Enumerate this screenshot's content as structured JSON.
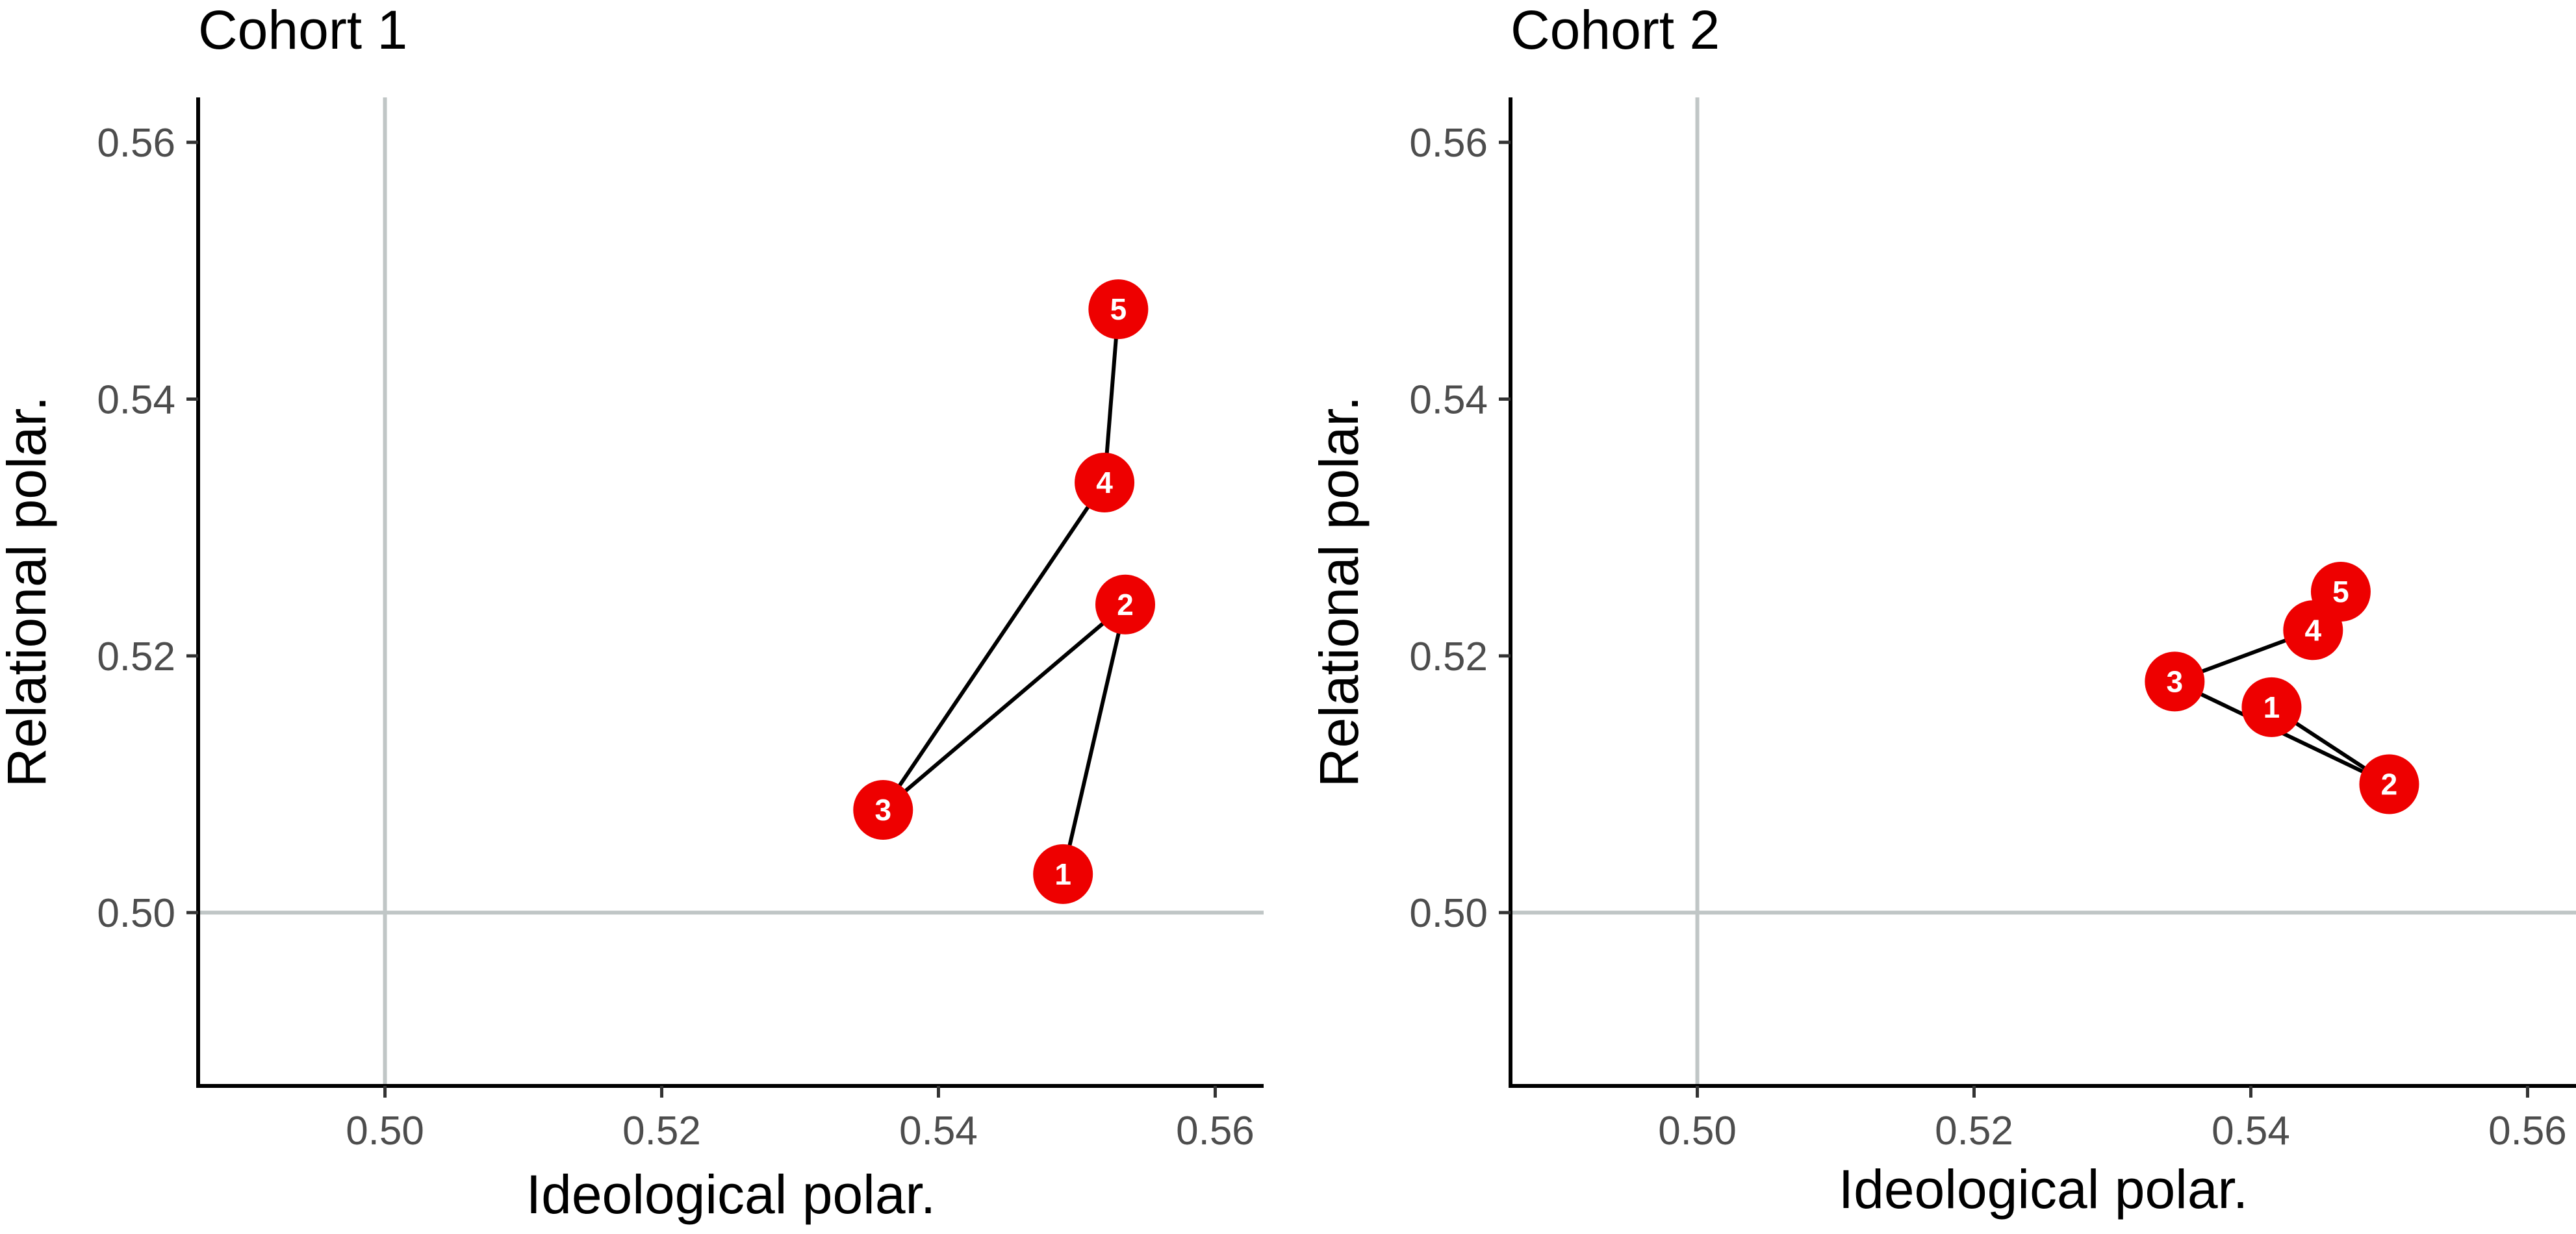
{
  "chart_data": [
    {
      "type": "line",
      "title": "Cohort 1",
      "xlabel": "Ideological polar.",
      "ylabel": "Relational polar.",
      "xlim": [
        0.4865,
        0.5635
      ],
      "ylim": [
        0.4865,
        0.5635
      ],
      "xticks": [
        "0.50",
        "0.52",
        "0.54",
        "0.56"
      ],
      "yticks": [
        "0.50",
        "0.52",
        "0.54",
        "0.56"
      ],
      "reference_lines": {
        "x": 0.5,
        "y": 0.5
      },
      "points": [
        {
          "label": "1",
          "x": 0.549,
          "y": 0.503
        },
        {
          "label": "2",
          "x": 0.5535,
          "y": 0.524
        },
        {
          "label": "3",
          "x": 0.536,
          "y": 0.508
        },
        {
          "label": "4",
          "x": 0.552,
          "y": 0.5335
        },
        {
          "label": "5",
          "x": 0.553,
          "y": 0.547
        }
      ],
      "point_color": "#ee0000",
      "line_color": "#000000",
      "reference_line_color": "#c0c6c6"
    },
    {
      "type": "line",
      "title": "Cohort 2",
      "xlabel": "Ideological polar.",
      "ylabel": "Relational polar.",
      "xlim": [
        0.4865,
        0.5635
      ],
      "ylim": [
        0.4865,
        0.5635
      ],
      "xticks": [
        "0.50",
        "0.52",
        "0.54",
        "0.56"
      ],
      "yticks": [
        "0.50",
        "0.52",
        "0.54",
        "0.56"
      ],
      "reference_lines": {
        "x": 0.5,
        "y": 0.5
      },
      "points": [
        {
          "label": "1",
          "x": 0.5415,
          "y": 0.516
        },
        {
          "label": "2",
          "x": 0.55,
          "y": 0.51
        },
        {
          "label": "3",
          "x": 0.5345,
          "y": 0.518
        },
        {
          "label": "4",
          "x": 0.5445,
          "y": 0.522
        },
        {
          "label": "5",
          "x": 0.5465,
          "y": 0.525
        }
      ],
      "point_color": "#ee0000",
      "line_color": "#000000",
      "reference_line_color": "#c0c6c6"
    }
  ]
}
